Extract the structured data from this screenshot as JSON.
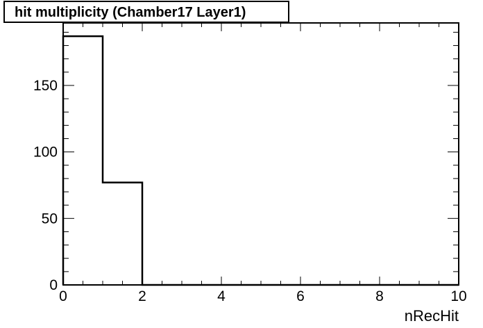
{
  "chart_data": {
    "type": "histogram",
    "title": "hit multiplicity (Chamber17 Layer1)",
    "xlabel": "nRecHit",
    "ylabel": "",
    "bin_edges": [
      0,
      1,
      2,
      3,
      4,
      5,
      6,
      7,
      8,
      9,
      10
    ],
    "values": [
      187,
      77,
      0,
      0,
      0,
      0,
      0,
      0,
      0,
      0
    ],
    "xlim": [
      0,
      10
    ],
    "ylim": [
      0,
      197
    ],
    "x_ticks": [
      0,
      2,
      4,
      6,
      8,
      10
    ],
    "y_ticks": [
      0,
      50,
      100,
      150
    ],
    "x_tick_labels": [
      "0",
      "2",
      "4",
      "6",
      "8",
      "10"
    ],
    "y_tick_labels": [
      "0",
      "50",
      "100",
      "150"
    ],
    "grid": false,
    "legend": "none",
    "colors": {
      "line": "#000000",
      "background": "#ffffff"
    }
  }
}
